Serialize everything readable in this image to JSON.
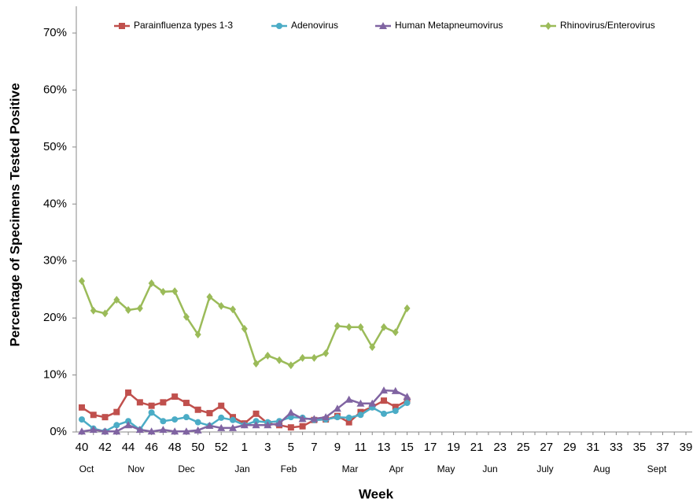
{
  "chart_data": {
    "type": "line",
    "x_label": "Week",
    "y_label": "Percentage of Specimens Tested Positive",
    "categories": [
      "40",
      null,
      "42",
      null,
      "44",
      null,
      "46",
      null,
      "48",
      null,
      "50",
      null,
      "52",
      null,
      "1",
      null,
      "3",
      null,
      "5",
      null,
      "7",
      null,
      "9",
      null,
      "11",
      null,
      "13",
      null,
      "15",
      null,
      "17",
      null,
      "19",
      null,
      "21",
      null,
      "23",
      null,
      "25",
      null,
      "27",
      null,
      "29",
      null,
      "31",
      null,
      "33",
      null,
      "35",
      null,
      "37",
      null,
      "39"
    ],
    "month_labels": [
      "Oct",
      "Nov",
      "Dec",
      "Jan",
      "Feb",
      "Mar",
      "Apr",
      "May",
      "Jun",
      "July",
      "Aug",
      "Sept"
    ],
    "ylim": [
      0,
      70
    ],
    "yticks": [
      {
        "value": 0,
        "label": "0%"
      },
      {
        "value": 10,
        "label": "10%"
      },
      {
        "value": 20,
        "label": "20%"
      },
      {
        "value": 30,
        "label": "30%"
      },
      {
        "value": 40,
        "label": "40%"
      },
      {
        "value": 50,
        "label": "50%"
      },
      {
        "value": 60,
        "label": "60%"
      },
      {
        "value": 70,
        "label": "70%"
      }
    ],
    "grid": false,
    "legend": "top",
    "series": [
      {
        "name": "Parainfluenza types 1-3",
        "color": "#c0504d",
        "marker": "square",
        "values": [
          4.3,
          3.0,
          2.6,
          3.5,
          6.9,
          5.2,
          4.6,
          5.2,
          6.2,
          5.1,
          3.9,
          3.3,
          4.6,
          2.6,
          1.5,
          3.2,
          1.5,
          1.2,
          0.8,
          1.0,
          2.1,
          2.2,
          2.8,
          1.7,
          3.5,
          4.4,
          5.5,
          4.4,
          5.5,
          null,
          null,
          null,
          null,
          null,
          null,
          null,
          null,
          null,
          null,
          null,
          null,
          null,
          null,
          null,
          null,
          null,
          null,
          null,
          null,
          null,
          null,
          null,
          null
        ]
      },
      {
        "name": "Adenovirus",
        "color": "#4bacc6",
        "marker": "circle",
        "values": [
          2.2,
          0.6,
          0.1,
          1.2,
          1.9,
          0.4,
          3.4,
          1.9,
          2.2,
          2.6,
          1.7,
          1.1,
          2.5,
          2.1,
          1.2,
          1.9,
          1.7,
          1.9,
          2.6,
          2.5,
          2.1,
          2.2,
          2.6,
          2.5,
          3.0,
          4.3,
          3.2,
          3.7,
          5.1,
          null,
          null,
          null,
          null,
          null,
          null,
          null,
          null,
          null,
          null,
          null,
          null,
          null,
          null,
          null,
          null,
          null,
          null,
          null,
          null,
          null,
          null,
          null,
          null
        ]
      },
      {
        "name": "Human Metapneumovirus",
        "color": "#8064a2",
        "marker": "triangle",
        "values": [
          0.1,
          0.4,
          0.1,
          0.1,
          1.2,
          0.4,
          0.1,
          0.4,
          0.1,
          0.1,
          0.3,
          1.1,
          0.7,
          0.7,
          1.2,
          1.2,
          1.2,
          1.5,
          3.4,
          2.3,
          2.3,
          2.6,
          4.1,
          5.7,
          5.0,
          5.0,
          7.3,
          7.2,
          6.2,
          null,
          null,
          null,
          null,
          null,
          null,
          null,
          null,
          null,
          null,
          null,
          null,
          null,
          null,
          null,
          null,
          null,
          null,
          null,
          null,
          null,
          null,
          null,
          null
        ]
      },
      {
        "name": "Rhinovirus/Enterovirus",
        "color": "#9bbb59",
        "marker": "diamond",
        "values": [
          26.5,
          21.3,
          20.8,
          23.2,
          21.4,
          21.7,
          26.1,
          24.6,
          24.7,
          20.2,
          17.1,
          23.7,
          22.1,
          21.5,
          18.1,
          12.0,
          13.4,
          12.6,
          11.7,
          13.0,
          13.0,
          13.8,
          18.6,
          18.4,
          18.4,
          14.9,
          18.4,
          17.5,
          21.7,
          null,
          null,
          null,
          null,
          null,
          null,
          null,
          null,
          null,
          null,
          null,
          null,
          null,
          null,
          null,
          null,
          null,
          null,
          null,
          null,
          null,
          null,
          null,
          null
        ]
      }
    ]
  }
}
